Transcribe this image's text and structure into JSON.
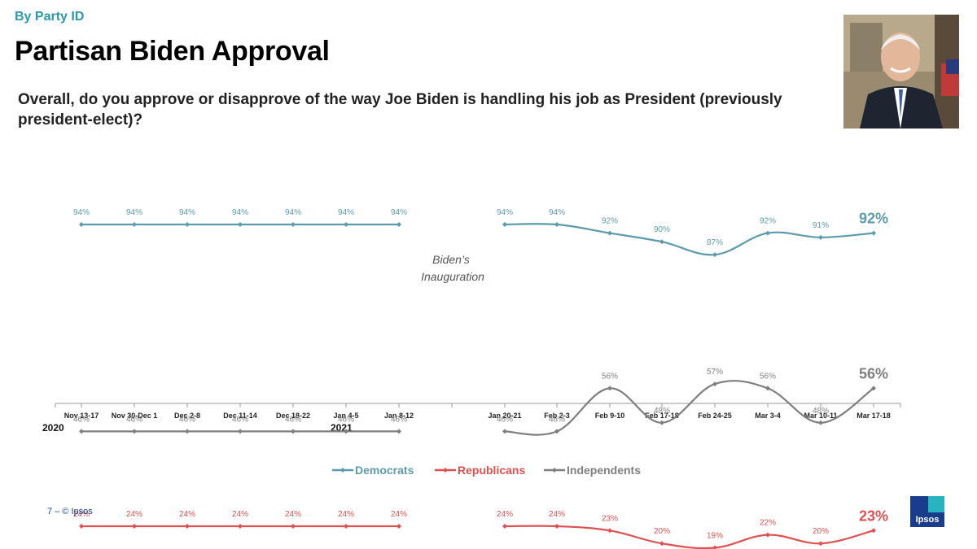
{
  "header": {
    "kicker": "By Party ID",
    "title": "Partisan Biden Approval",
    "question": "Overall, do you approve or disapprove of the way Joe Biden is handling his job as President (previously president-elect)?"
  },
  "photo": {
    "description_icon": "president-portrait"
  },
  "footer": {
    "page_label": "7 – © Ipsos",
    "logo_text": "Ipsos"
  },
  "chart_data": {
    "type": "line",
    "categories": [
      "Nov 13-17",
      "Nov 30-Dec 1",
      "Dec 2-8",
      "Dec 11-14",
      "Dec 18-22",
      "Jan 4-5",
      "Jan 8-12",
      "Jan 20-21",
      "Feb 2-3",
      "Feb 9-10",
      "Feb 17-18",
      "Feb 24-25",
      "Mar 3-4",
      "Mar 10-11",
      "Mar 17-18"
    ],
    "segments": [
      [
        0,
        6
      ],
      [
        7,
        14
      ]
    ],
    "year_labels": [
      {
        "label": "2020",
        "category_index": 0
      },
      {
        "label": "2021",
        "category_index": 5
      }
    ],
    "annotation": "Biden's Inauguration",
    "series": [
      {
        "name": "Democrats",
        "color": "#5b9bad",
        "values": [
          94,
          94,
          94,
          94,
          94,
          94,
          94,
          94,
          94,
          92,
          90,
          87,
          92,
          91,
          92
        ]
      },
      {
        "name": "Republicans",
        "color": "#e05050",
        "values": [
          24,
          24,
          24,
          24,
          24,
          24,
          24,
          24,
          24,
          23,
          20,
          19,
          22,
          20,
          23
        ]
      },
      {
        "name": "Independents",
        "color": "#7f7f7f",
        "values": [
          46,
          46,
          46,
          46,
          46,
          46,
          46,
          46,
          46,
          56,
          48,
          57,
          56,
          48,
          56
        ]
      }
    ],
    "value_suffix": "%",
    "legend_position": "bottom-center"
  }
}
